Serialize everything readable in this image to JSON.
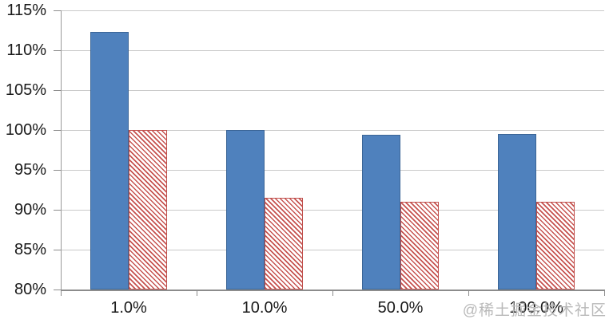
{
  "chart_data": {
    "type": "bar",
    "title": "",
    "xlabel": "",
    "ylabel": "",
    "categories": [
      "1.0%",
      "10.0%",
      "50.0%",
      "100.0%"
    ],
    "series": [
      {
        "name": "solid-blue",
        "values": [
          112.3,
          100.0,
          99.4,
          99.5
        ]
      },
      {
        "name": "red-hatched",
        "values": [
          100.0,
          91.5,
          91.0,
          91.0
        ]
      }
    ],
    "ylim": [
      80,
      115
    ],
    "y_tick_step": 5,
    "y_tick_labels": [
      "115%",
      "110%",
      "105%",
      "100%",
      "95%",
      "90%",
      "85%",
      "80%"
    ],
    "grid": true,
    "legend": "none",
    "colors": {
      "blue_fill": "#4f81bd",
      "blue_border": "#3b6596",
      "red_line": "#c0504d",
      "gridline": "#c9c9c9",
      "axis": "#8c8c8c",
      "text": "#1a1a1a"
    }
  },
  "watermark": "@稀土掘金技术社区"
}
